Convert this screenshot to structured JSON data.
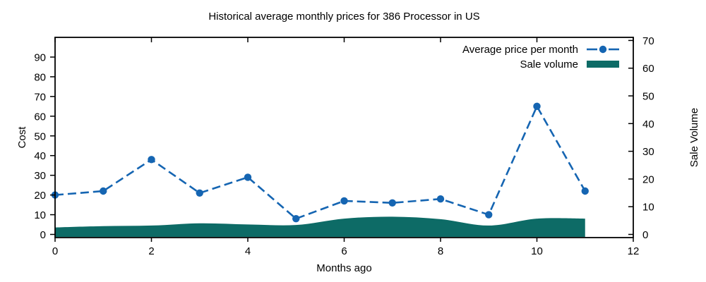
{
  "chart_data": {
    "type": "line",
    "title": "Historical average monthly prices for 386 Processor in US",
    "xlabel": "Months ago",
    "ylabel": "Cost",
    "y2label": "Sale Volume",
    "x": [
      0,
      1,
      2,
      3,
      4,
      5,
      6,
      7,
      8,
      9,
      10,
      11
    ],
    "series": [
      {
        "name": "Average price per month",
        "type": "line",
        "axis": "y1-left-cost",
        "color": "#1565b2",
        "marker": "filled-circle",
        "line_style": "dashed",
        "values": [
          20,
          22,
          38,
          21,
          29,
          8,
          17,
          16,
          18,
          10,
          65,
          22
        ]
      },
      {
        "name": "Sale volume",
        "type": "area",
        "axis": "y2-right-sale-volume",
        "color": "#0d6b66",
        "values": [
          2.5,
          3,
          3.2,
          4,
          3.6,
          3.4,
          5.7,
          6.4,
          5.5,
          3.2,
          5.7,
          5.7
        ]
      }
    ],
    "x_ticks": [
      0,
      2,
      4,
      6,
      8,
      10,
      12
    ],
    "y1_ticks": [
      0,
      10,
      20,
      30,
      40,
      50,
      60,
      70,
      80,
      90
    ],
    "y2_ticks": [
      0,
      10,
      20,
      30,
      40,
      50,
      60,
      70
    ],
    "x_range": [
      0,
      12
    ],
    "y1_range": [
      0,
      100
    ],
    "y2_range": [
      0,
      71
    ],
    "legend_position": "top-right-inside",
    "grid": false,
    "background": "#ffffff",
    "axis_color": "#000000"
  }
}
